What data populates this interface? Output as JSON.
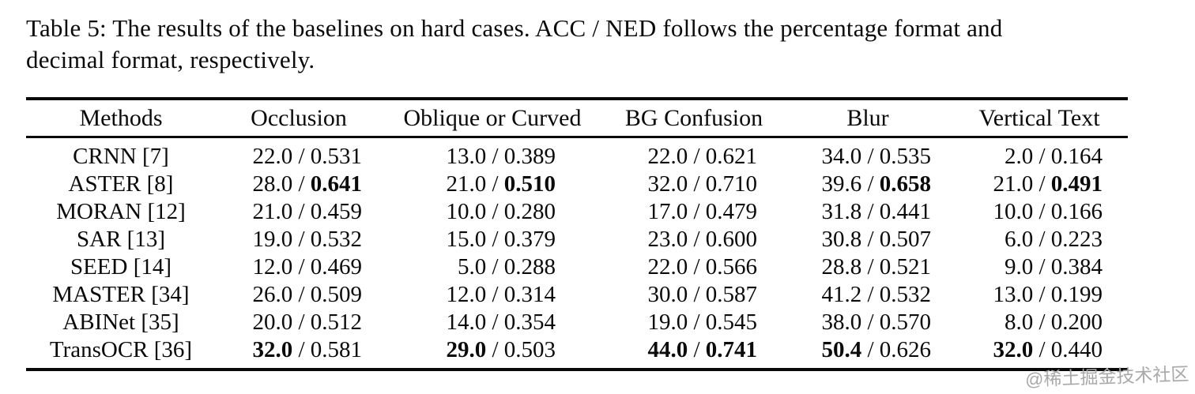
{
  "caption": {
    "line1": "Table 5: The results of the baselines on hard cases. ACC / NED follows the percentage format and",
    "line2": "decimal format, respectively."
  },
  "watermark": "@稀土掘金技术社区",
  "table": {
    "columns": [
      "Methods",
      "Occlusion",
      "Oblique or Curved",
      "BG Confusion",
      "Blur",
      "Vertical Text"
    ],
    "separator": " / ",
    "rows": [
      {
        "method": "CRNN [7]",
        "cells": [
          {
            "acc": "22.0",
            "ned": "0.531",
            "acc_bold": false,
            "ned_bold": false
          },
          {
            "acc": "13.0",
            "ned": "0.389",
            "acc_bold": false,
            "ned_bold": false
          },
          {
            "acc": "22.0",
            "ned": "0.621",
            "acc_bold": false,
            "ned_bold": false
          },
          {
            "acc": "34.0",
            "ned": "0.535",
            "acc_bold": false,
            "ned_bold": false
          },
          {
            "acc": "2.0",
            "ned": "0.164",
            "acc_bold": false,
            "ned_bold": false
          }
        ]
      },
      {
        "method": "ASTER [8]",
        "cells": [
          {
            "acc": "28.0",
            "ned": "0.641",
            "acc_bold": false,
            "ned_bold": true
          },
          {
            "acc": "21.0",
            "ned": "0.510",
            "acc_bold": false,
            "ned_bold": true
          },
          {
            "acc": "32.0",
            "ned": "0.710",
            "acc_bold": false,
            "ned_bold": false
          },
          {
            "acc": "39.6",
            "ned": "0.658",
            "acc_bold": false,
            "ned_bold": true
          },
          {
            "acc": "21.0",
            "ned": "0.491",
            "acc_bold": false,
            "ned_bold": true
          }
        ]
      },
      {
        "method": "MORAN [12]",
        "cells": [
          {
            "acc": "21.0",
            "ned": "0.459",
            "acc_bold": false,
            "ned_bold": false
          },
          {
            "acc": "10.0",
            "ned": "0.280",
            "acc_bold": false,
            "ned_bold": false
          },
          {
            "acc": "17.0",
            "ned": "0.479",
            "acc_bold": false,
            "ned_bold": false
          },
          {
            "acc": "31.8",
            "ned": "0.441",
            "acc_bold": false,
            "ned_bold": false
          },
          {
            "acc": "10.0",
            "ned": "0.166",
            "acc_bold": false,
            "ned_bold": false
          }
        ]
      },
      {
        "method": "SAR [13]",
        "cells": [
          {
            "acc": "19.0",
            "ned": "0.532",
            "acc_bold": false,
            "ned_bold": false
          },
          {
            "acc": "15.0",
            "ned": "0.379",
            "acc_bold": false,
            "ned_bold": false
          },
          {
            "acc": "23.0",
            "ned": "0.600",
            "acc_bold": false,
            "ned_bold": false
          },
          {
            "acc": "30.8",
            "ned": "0.507",
            "acc_bold": false,
            "ned_bold": false
          },
          {
            "acc": "6.0",
            "ned": "0.223",
            "acc_bold": false,
            "ned_bold": false
          }
        ]
      },
      {
        "method": "SEED [14]",
        "cells": [
          {
            "acc": "12.0",
            "ned": "0.469",
            "acc_bold": false,
            "ned_bold": false
          },
          {
            "acc": "5.0",
            "ned": "0.288",
            "acc_bold": false,
            "ned_bold": false
          },
          {
            "acc": "22.0",
            "ned": "0.566",
            "acc_bold": false,
            "ned_bold": false
          },
          {
            "acc": "28.8",
            "ned": "0.521",
            "acc_bold": false,
            "ned_bold": false
          },
          {
            "acc": "9.0",
            "ned": "0.384",
            "acc_bold": false,
            "ned_bold": false
          }
        ]
      },
      {
        "method": "MASTER [34]",
        "cells": [
          {
            "acc": "26.0",
            "ned": "0.509",
            "acc_bold": false,
            "ned_bold": false
          },
          {
            "acc": "12.0",
            "ned": "0.314",
            "acc_bold": false,
            "ned_bold": false
          },
          {
            "acc": "30.0",
            "ned": "0.587",
            "acc_bold": false,
            "ned_bold": false
          },
          {
            "acc": "41.2",
            "ned": "0.532",
            "acc_bold": false,
            "ned_bold": false
          },
          {
            "acc": "13.0",
            "ned": "0.199",
            "acc_bold": false,
            "ned_bold": false
          }
        ]
      },
      {
        "method": "ABINet [35]",
        "cells": [
          {
            "acc": "20.0",
            "ned": "0.512",
            "acc_bold": false,
            "ned_bold": false
          },
          {
            "acc": "14.0",
            "ned": "0.354",
            "acc_bold": false,
            "ned_bold": false
          },
          {
            "acc": "19.0",
            "ned": "0.545",
            "acc_bold": false,
            "ned_bold": false
          },
          {
            "acc": "38.0",
            "ned": "0.570",
            "acc_bold": false,
            "ned_bold": false
          },
          {
            "acc": "8.0",
            "ned": "0.200",
            "acc_bold": false,
            "ned_bold": false
          }
        ]
      },
      {
        "method": "TransOCR [36]",
        "cells": [
          {
            "acc": "32.0",
            "ned": "0.581",
            "acc_bold": true,
            "ned_bold": false
          },
          {
            "acc": "29.0",
            "ned": "0.503",
            "acc_bold": true,
            "ned_bold": false
          },
          {
            "acc": "44.0",
            "ned": "0.741",
            "acc_bold": true,
            "ned_bold": true
          },
          {
            "acc": "50.4",
            "ned": "0.626",
            "acc_bold": true,
            "ned_bold": false
          },
          {
            "acc": "32.0",
            "ned": "0.440",
            "acc_bold": true,
            "ned_bold": false
          }
        ]
      }
    ]
  }
}
